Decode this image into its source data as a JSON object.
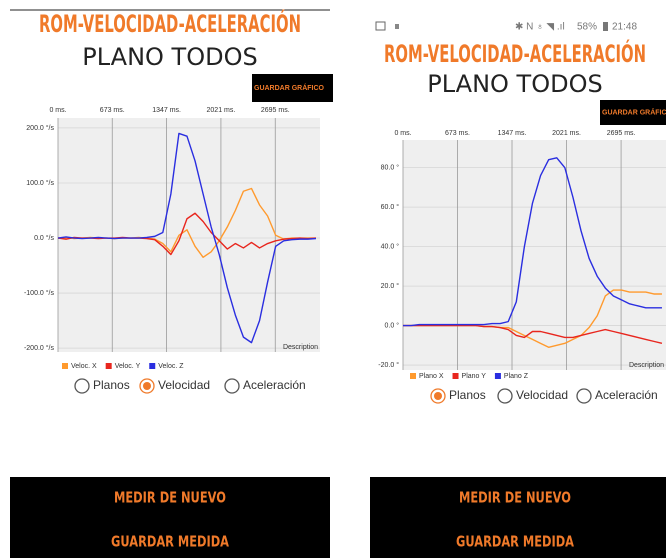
{
  "screens": [
    {
      "title": "ROM-VELOCIDAD-ACELERACIÓN",
      "subtitle": "PLANO TODOS",
      "save_chart_button": "GUARDAR GRÁFICO",
      "radio_options": [
        {
          "label": "Planos",
          "selected": false
        },
        {
          "label": "Velocidad",
          "selected": true
        },
        {
          "label": "Aceleración",
          "selected": false
        }
      ],
      "buttons": [
        "MEDIR DE NUEVO",
        "GUARDAR MEDIDA"
      ]
    },
    {
      "title": "ROM-VELOCIDAD-ACELERACIÓN",
      "subtitle": "PLANO TODOS",
      "save_chart_button": "GUARDAR GRÁFICO",
      "radio_options": [
        {
          "label": "Planos",
          "selected": true
        },
        {
          "label": "Velocidad",
          "selected": false
        },
        {
          "label": "Aceleración",
          "selected": false
        }
      ],
      "buttons": [
        "MEDIR DE NUEVO",
        "GUARDAR MEDIDA"
      ]
    }
  ],
  "status_bar": {
    "battery": "58%",
    "time": "21:48"
  },
  "chart_data": [
    {
      "type": "line",
      "description": "Description",
      "x": [
        0,
        100,
        200,
        300,
        400,
        500,
        600,
        700,
        800,
        900,
        1000,
        1100,
        1200,
        1300,
        1400,
        1500,
        1600,
        1700,
        1800,
        1900,
        2000,
        2100,
        2200,
        2300,
        2400,
        2500,
        2600,
        2700,
        2800,
        2900,
        3000,
        3100,
        3200
      ],
      "xlim": [
        0,
        3250
      ],
      "xticks": [
        {
          "value": 0,
          "label": "0 ms."
        },
        {
          "value": 673,
          "label": "673 ms."
        },
        {
          "value": 1347,
          "label": "1347 ms."
        },
        {
          "value": 2021,
          "label": "2021 ms."
        },
        {
          "value": 2695,
          "label": "2695 ms."
        }
      ],
      "ylim": [
        -207,
        218
      ],
      "yticks": [
        {
          "value": 200,
          "label": "200.0 °/s"
        },
        {
          "value": 100,
          "label": "100.0 °/s"
        },
        {
          "value": 0,
          "label": "0.0 °/s"
        },
        {
          "value": -100,
          "label": "-100.0 °/s"
        },
        {
          "value": -200,
          "label": "-200.0 °/s"
        }
      ],
      "grid": true,
      "series": [
        {
          "name": "Veloc. X",
          "color": "#ff9a2e",
          "values": [
            0,
            1,
            -1,
            0,
            1,
            0,
            0,
            -1,
            0,
            0,
            1,
            0,
            -2,
            -10,
            -25,
            5,
            15,
            -15,
            -35,
            -25,
            -5,
            20,
            50,
            85,
            90,
            60,
            40,
            5,
            -2,
            0,
            0,
            0,
            0
          ]
        },
        {
          "name": "Veloc. Y",
          "color": "#e8261e",
          "values": [
            0,
            -2,
            1,
            0,
            0,
            -1,
            0,
            0,
            1,
            0,
            0,
            -1,
            -3,
            -15,
            -30,
            -5,
            35,
            45,
            30,
            10,
            -5,
            -20,
            -10,
            -18,
            -8,
            -18,
            -10,
            -5,
            -2,
            -1,
            0,
            -1,
            0
          ]
        },
        {
          "name": "Veloc. Z",
          "color": "#2a2ee0",
          "values": [
            0,
            2,
            0,
            -1,
            0,
            1,
            0,
            -1,
            0,
            0,
            0,
            1,
            3,
            10,
            80,
            190,
            185,
            140,
            80,
            20,
            -30,
            -90,
            -140,
            -180,
            -190,
            -150,
            -80,
            -15,
            -5,
            -3,
            -2,
            -2,
            -1
          ]
        }
      ]
    },
    {
      "type": "line",
      "description": "Description",
      "x": [
        0,
        100,
        200,
        300,
        400,
        500,
        600,
        700,
        800,
        900,
        1000,
        1100,
        1200,
        1300,
        1400,
        1500,
        1600,
        1700,
        1800,
        1900,
        2000,
        2100,
        2200,
        2300,
        2400,
        2500,
        2600,
        2700,
        2800,
        2900,
        3000,
        3100,
        3200
      ],
      "xlim": [
        0,
        3250
      ],
      "xticks": [
        {
          "value": 0,
          "label": "0 ms."
        },
        {
          "value": 673,
          "label": "673 ms."
        },
        {
          "value": 1347,
          "label": "1347 ms."
        },
        {
          "value": 2021,
          "label": "2021 ms."
        },
        {
          "value": 2695,
          "label": "2695 ms."
        }
      ],
      "ylim": [
        -22.5,
        94
      ],
      "yticks": [
        {
          "value": 80,
          "label": "80.0 °"
        },
        {
          "value": 60,
          "label": "60.0 °"
        },
        {
          "value": 40,
          "label": "40.0 °"
        },
        {
          "value": 20,
          "label": "20.0 °"
        },
        {
          "value": 0,
          "label": "0.0 °"
        },
        {
          "value": -20,
          "label": "-20.0 °"
        }
      ],
      "grid": true,
      "series": [
        {
          "name": "Plano X",
          "color": "#ff9a2e",
          "values": [
            0,
            0,
            0,
            0,
            0,
            0,
            0,
            0,
            0,
            0,
            -0.5,
            -0.5,
            -1,
            -1,
            -3,
            -5,
            -7,
            -9,
            -11,
            -10,
            -9,
            -7,
            -5,
            -1,
            5,
            15,
            18,
            18,
            17,
            17,
            17,
            16,
            16
          ]
        },
        {
          "name": "Plano Y",
          "color": "#e8261e",
          "values": [
            0,
            0,
            0,
            0,
            0,
            0,
            0,
            0,
            0,
            0,
            -0.5,
            -0.5,
            -1,
            -2,
            -5,
            -6,
            -3,
            -3,
            -4,
            -5,
            -6,
            -6,
            -5,
            -4,
            -3,
            -2,
            -3,
            -4,
            -5,
            -6,
            -7,
            -8,
            -9
          ]
        },
        {
          "name": "Plano Z",
          "color": "#2a2ee0",
          "values": [
            0,
            0,
            0.5,
            0.5,
            0.5,
            0.5,
            0.5,
            0.5,
            0.5,
            0.5,
            0.5,
            1,
            1,
            2,
            12,
            40,
            62,
            76,
            84,
            85,
            80,
            65,
            48,
            34,
            25,
            19,
            15,
            13,
            11,
            10,
            9,
            9,
            9
          ]
        }
      ]
    }
  ]
}
